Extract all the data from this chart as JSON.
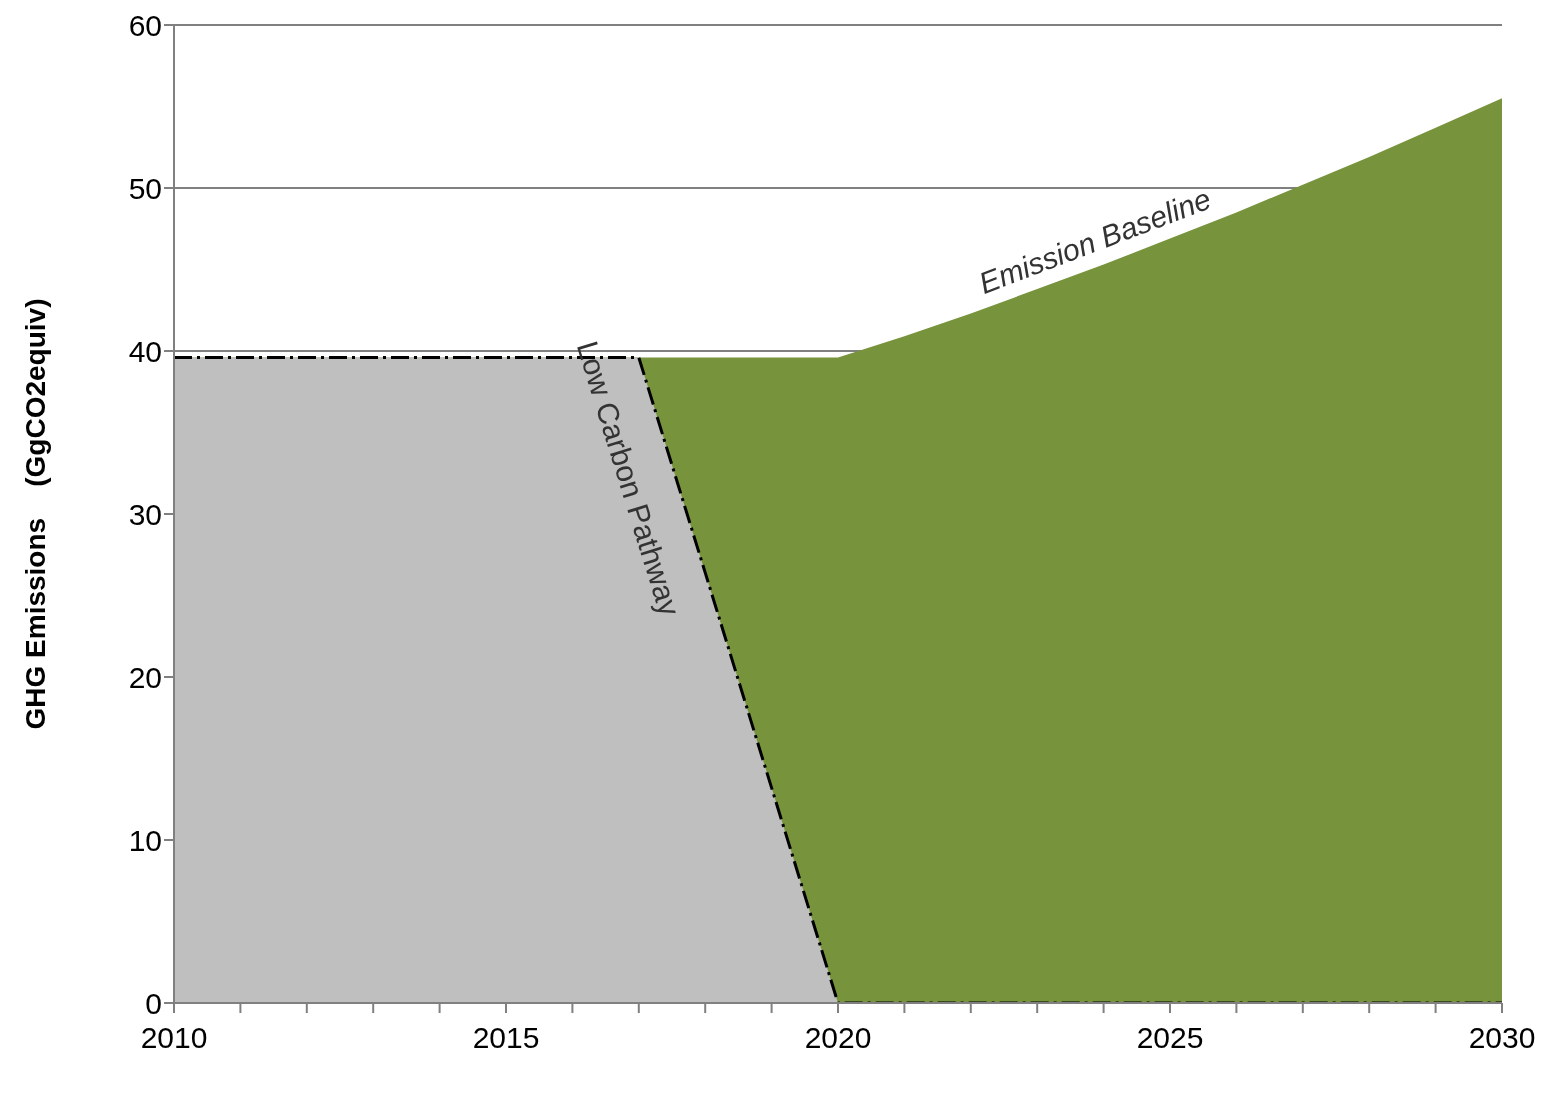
{
  "chart_data": {
    "type": "area",
    "ylabel": "GHG Emissions    (GgCO2equiv)",
    "x": [
      2010,
      2011,
      2012,
      2013,
      2014,
      2015,
      2016,
      2017,
      2018,
      2019,
      2020,
      2021,
      2022,
      2023,
      2024,
      2025,
      2026,
      2027,
      2028,
      2029,
      2030
    ],
    "series": [
      {
        "name": "Emission Baseline",
        "color": "#77933c",
        "values": [
          39.6,
          39.6,
          39.6,
          39.6,
          39.6,
          39.6,
          39.6,
          39.6,
          39.6,
          39.6,
          39.6,
          40.9,
          42.3,
          43.8,
          45.3,
          46.9,
          48.5,
          50.2,
          51.9,
          53.7,
          55.5
        ]
      },
      {
        "name": "Low Carbon Pathway",
        "color": "#bfbfbf",
        "line_style": "dashed",
        "values": [
          39.6,
          39.6,
          39.6,
          39.6,
          39.6,
          39.6,
          39.6,
          39.6,
          26.4,
          13.2,
          0,
          0,
          0,
          0,
          0,
          0,
          0,
          0,
          0,
          0,
          0
        ]
      }
    ],
    "xlim": [
      2010,
      2030
    ],
    "xticks": [
      2010,
      {
        "value": 2011,
        "label": null
      },
      {
        "value": 2012,
        "label": null
      },
      {
        "value": 2013,
        "label": null
      },
      {
        "value": 2014,
        "label": null
      },
      2015,
      {
        "value": 2016,
        "label": null
      },
      {
        "value": 2017,
        "label": null
      },
      {
        "value": 2018,
        "label": null
      },
      {
        "value": 2019,
        "label": null
      },
      2020,
      {
        "value": 2021,
        "label": null
      },
      {
        "value": 2022,
        "label": null
      },
      {
        "value": 2023,
        "label": null
      },
      {
        "value": 2024,
        "label": null
      },
      2025,
      {
        "value": 2026,
        "label": null
      },
      {
        "value": 2027,
        "label": null
      },
      {
        "value": 2028,
        "label": null
      },
      {
        "value": 2029,
        "label": null
      },
      2030
    ],
    "ylim": [
      0,
      60
    ],
    "yticks": [
      0,
      10,
      20,
      30,
      40,
      50,
      60
    ],
    "grid": "y",
    "legend": false
  }
}
